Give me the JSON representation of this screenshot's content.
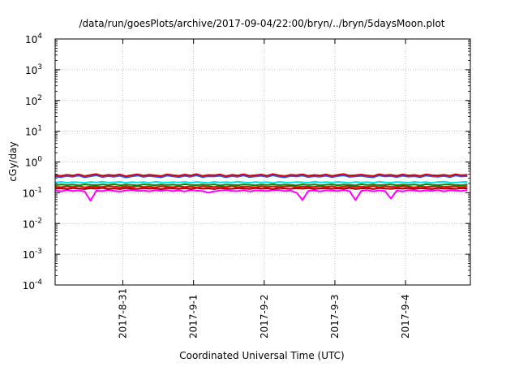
{
  "chart_data": {
    "type": "line",
    "title": "/data/run/goesPlots/archive/2017-09-04/22:00/bryn/../bryn/5daysMoon.plot",
    "xlabel": "Coordinated Universal Time (UTC)",
    "ylabel": "cGy/day",
    "yscale": "log",
    "ylim": [
      0.0001,
      10000
    ],
    "y_ticks": [
      {
        "value": 0.0001,
        "base": "10",
        "exp": "-4"
      },
      {
        "value": 0.001,
        "base": "10",
        "exp": "-3"
      },
      {
        "value": 0.01,
        "base": "10",
        "exp": "-2"
      },
      {
        "value": 0.1,
        "base": "10",
        "exp": "-1"
      },
      {
        "value": 1,
        "base": "10",
        "exp": "0"
      },
      {
        "value": 10,
        "base": "10",
        "exp": "1"
      },
      {
        "value": 100,
        "base": "10",
        "exp": "2"
      },
      {
        "value": 1000,
        "base": "10",
        "exp": "3"
      },
      {
        "value": 10000,
        "base": "10",
        "exp": "4"
      }
    ],
    "xlim": [
      "2017-08-30T01:00",
      "2017-09-04T22:00"
    ],
    "x_ticks": [
      "2017-8-31",
      "2017-9-1",
      "2017-9-2",
      "2017-9-3",
      "2017-9-4"
    ],
    "grid": true,
    "legend": "none",
    "sample_hours": 2,
    "series": [
      {
        "color": "#ff00ff",
        "base": 0.115,
        "dips": [
          {
            "t": "2017-08-30T13:00",
            "v": 0.055
          },
          {
            "t": "2017-08-30T18:00",
            "v": 0.1
          },
          {
            "t": "2017-09-01T05:00",
            "v": 0.1
          },
          {
            "t": "2017-09-02T11:00",
            "v": 0.1
          },
          {
            "t": "2017-09-02T13:00",
            "v": 0.058
          },
          {
            "t": "2017-09-03T07:00",
            "v": 0.058
          },
          {
            "t": "2017-09-03T19:00",
            "v": 0.065
          },
          {
            "t": "2017-09-04T18:00",
            "v": 0.027
          }
        ],
        "values": [
          1.02,
          0.97,
          1.05,
          0.99,
          1.03,
          0.96,
          1.04,
          1.01,
          0.98,
          1.06,
          1.0,
          0.95,
          1.03,
          1.07,
          0.99,
          1.02,
          0.97,
          1.04,
          1.0,
          1.06,
          0.98,
          1.03,
          0.96,
          1.05,
          1.01,
          0.99,
          1.04,
          0.97,
          1.02,
          1.06,
          1.0,
          0.98,
          1.05,
          0.96,
          1.03,
          1.01,
          0.99,
          1.04,
          1.07,
          0.98,
          1.02,
          0.97,
          1.05,
          1.0,
          1.03,
          0.96,
          1.04,
          1.01,
          0.99,
          1.06,
          0.98,
          1.02,
          1.0,
          1.05,
          0.97,
          1.03,
          0.99,
          1.04,
          1.01,
          0.96,
          1.05,
          1.02,
          0.98,
          1.03,
          1.0,
          1.06,
          0.97,
          1.04,
          1.01,
          0.99,
          1.05,
          1.02
        ]
      },
      {
        "color": "#8b0000",
        "base": 0.135,
        "values": [
          1.0,
          1.03,
          0.98,
          1.05,
          1.01,
          0.97,
          1.04,
          1.0,
          1.06,
          0.99,
          1.02,
          0.97,
          1.05,
          1.01,
          0.98,
          1.04,
          1.0,
          1.03,
          0.96,
          1.05,
          1.02,
          0.99,
          1.04,
          0.98,
          1.06,
          1.0,
          1.03,
          0.97,
          1.05,
          1.01,
          0.99,
          1.04,
          1.02,
          0.98,
          1.05,
          1.0,
          1.03,
          0.97,
          1.06,
          1.01,
          0.99,
          1.04,
          1.0,
          1.05,
          0.98,
          1.02,
          1.04,
          0.99,
          1.03,
          1.0,
          1.06,
          0.98,
          1.02,
          1.04,
          0.97,
          1.05,
          1.01,
          0.99,
          1.03,
          1.0,
          1.05,
          0.98,
          1.04,
          1.01,
          0.97,
          1.06,
          1.0,
          1.03,
          0.99,
          1.04,
          1.02,
          1.05
        ]
      },
      {
        "color": "#ff0000",
        "base": 0.155,
        "values": [
          1.01,
          0.98,
          1.04,
          1.0,
          1.06,
          0.97,
          1.03,
          1.01,
          0.99,
          1.05,
          1.02,
          0.98,
          1.04,
          1.0,
          1.06,
          0.99,
          1.03,
          0.97,
          1.05,
          1.01,
          0.98,
          1.04,
          1.0,
          1.03,
          0.96,
          1.05,
          1.02,
          0.99,
          1.04,
          1.0,
          1.06,
          0.98,
          1.03,
          1.01,
          0.97,
          1.05,
          1.0,
          1.04,
          0.99,
          1.02,
          1.06,
          0.98,
          1.03,
          1.01,
          0.99,
          1.05,
          1.0,
          1.04,
          0.97,
          1.02,
          1.05,
          0.99,
          1.03,
          1.0,
          1.06,
          0.98,
          1.04,
          1.01,
          0.99,
          1.05,
          1.02,
          0.97,
          1.04,
          1.0,
          1.03,
          1.06,
          0.99,
          1.02,
          1.04,
          0.98,
          1.05,
          1.03
        ]
      },
      {
        "color": "#008b00",
        "base": 0.178,
        "values": [
          0.99,
          1.04,
          1.0,
          1.03,
          0.97,
          1.05,
          1.01,
          0.99,
          1.04,
          1.0,
          1.06,
          0.98,
          1.03,
          1.01,
          0.97,
          1.05,
          1.02,
          0.99,
          1.04,
          1.0,
          1.03,
          0.98,
          1.06,
          1.01,
          0.99,
          1.04,
          1.0,
          1.05,
          0.97,
          1.03,
          1.01,
          0.99,
          1.05,
          1.02,
          0.98,
          1.04,
          1.0,
          1.06,
          0.99,
          1.03,
          1.01,
          0.97,
          1.05,
          1.0,
          1.04,
          0.98,
          1.02,
          1.05,
          0.99,
          1.03,
          1.01,
          0.97,
          1.06,
          1.0,
          1.04,
          0.99,
          1.02,
          1.05,
          0.98,
          1.03,
          1.0,
          1.04,
          0.97,
          1.06,
          1.01,
          0.99,
          1.03,
          1.05,
          1.0,
          0.98,
          1.04,
          1.02
        ]
      },
      {
        "color": "#00e5e5",
        "base": 0.215,
        "values": [
          1.0,
          1.05,
          0.98,
          1.03,
          1.01,
          0.97,
          1.04,
          1.0,
          1.06,
          0.99,
          1.02,
          1.05,
          0.98,
          1.03,
          1.0,
          1.04,
          0.97,
          1.06,
          1.01,
          0.99,
          1.03,
          1.0,
          1.05,
          0.98,
          1.04,
          1.01,
          0.97,
          1.05,
          1.0,
          1.03,
          0.99,
          1.06,
          1.02,
          0.98,
          1.04,
          1.0,
          1.03,
          0.97,
          1.05,
          1.01,
          0.99,
          1.04,
          1.02,
          0.98,
          1.06,
          1.0,
          1.03,
          0.99,
          1.05,
          1.01,
          0.97,
          1.04,
          1.0,
          1.03,
          0.98,
          1.06,
          1.01,
          0.99,
          1.04,
          1.02,
          0.98,
          1.05,
          1.0,
          1.03,
          0.97,
          1.04,
          1.06,
          1.0,
          0.99,
          1.03,
          1.05,
          1.02
        ]
      },
      {
        "color": "#1e5aff",
        "base": 0.33,
        "values": [
          1.02,
          0.97,
          1.06,
          1.0,
          1.1,
          0.96,
          1.04,
          1.12,
          0.98,
          1.05,
          1.0,
          1.08,
          0.95,
          1.03,
          1.1,
          0.99,
          1.06,
          1.01,
          0.96,
          1.09,
          1.03,
          0.98,
          1.07,
          1.0,
          1.11,
          0.97,
          1.04,
          1.02,
          1.08,
          0.96,
          1.05,
          1.0,
          1.1,
          0.98,
          1.03,
          1.07,
          0.99,
          1.12,
          1.01,
          0.96,
          1.06,
          1.02,
          1.09,
          0.98,
          1.04,
          1.0,
          1.08,
          0.97,
          1.05,
          1.11,
          0.99,
          1.03,
          1.07,
          1.0,
          0.96,
          1.1,
          1.02,
          1.05,
          0.98,
          1.08,
          1.01,
          1.04,
          0.97,
          1.09,
          1.03,
          1.0,
          1.06,
          0.98,
          1.1,
          1.02,
          1.05,
          1.13
        ]
      },
      {
        "color": "#dc0000",
        "base": 0.36,
        "values": [
          1.03,
          0.98,
          1.07,
          1.01,
          1.1,
          0.97,
          1.05,
          1.12,
          0.99,
          1.06,
          1.02,
          1.09,
          0.96,
          1.04,
          1.11,
          1.0,
          1.07,
          1.02,
          0.97,
          1.1,
          1.04,
          0.99,
          1.08,
          1.01,
          1.12,
          0.98,
          1.05,
          1.03,
          1.09,
          0.97,
          1.06,
          1.01,
          1.11,
          0.99,
          1.04,
          1.08,
          1.0,
          1.13,
          1.02,
          0.97,
          1.07,
          1.03,
          1.1,
          0.99,
          1.05,
          1.01,
          1.09,
          0.98,
          1.06,
          1.12,
          1.0,
          1.04,
          1.08,
          1.01,
          0.97,
          1.11,
          1.03,
          1.06,
          0.99,
          1.09,
          1.02,
          1.05,
          0.98,
          1.1,
          1.04,
          1.01,
          1.07,
          0.99,
          1.11,
          1.03,
          1.06,
          1.15
        ]
      }
    ]
  }
}
